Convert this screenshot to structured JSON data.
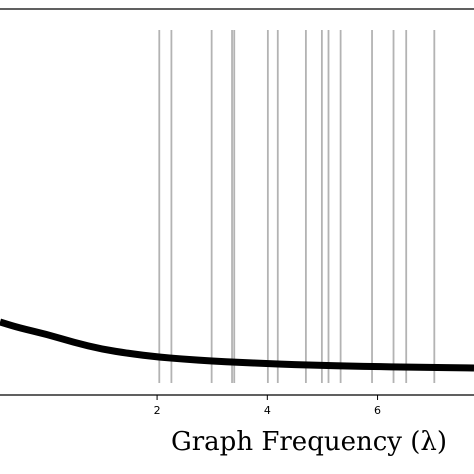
{
  "chart_data": {
    "type": "line",
    "xlabel": "Graph Frequency (λ)",
    "ylabel": "",
    "xlim": [
      -0.85,
      7.75
    ],
    "x_ticks": [
      {
        "value": 2,
        "label": "2"
      },
      {
        "value": 4,
        "label": "4"
      },
      {
        "value": 6,
        "label": "6"
      }
    ],
    "grid": false,
    "frequency_lines": [
      2.04,
      2.26,
      2.99,
      3.36,
      3.4,
      4.01,
      4.19,
      4.7,
      4.99,
      5.11,
      5.33,
      5.9,
      6.29,
      6.52,
      7.03
    ],
    "series": [
      {
        "x": [
          -0.85,
          -0.5,
          0.0,
          0.5,
          1.0,
          1.5,
          2.0,
          2.5,
          3.0,
          3.5,
          4.0,
          4.5,
          5.0,
          5.5,
          6.0,
          6.5,
          7.0,
          7.5,
          7.75
        ],
        "y": [
          1.0,
          0.885,
          0.76,
          0.6,
          0.47,
          0.385,
          0.32,
          0.275,
          0.24,
          0.213,
          0.19,
          0.17,
          0.155,
          0.142,
          0.131,
          0.122,
          0.114,
          0.107,
          0.104
        ]
      }
    ],
    "colors": {
      "curve": "#000000",
      "frequency_line": "#b3b3b3",
      "axes": "#000000"
    }
  }
}
